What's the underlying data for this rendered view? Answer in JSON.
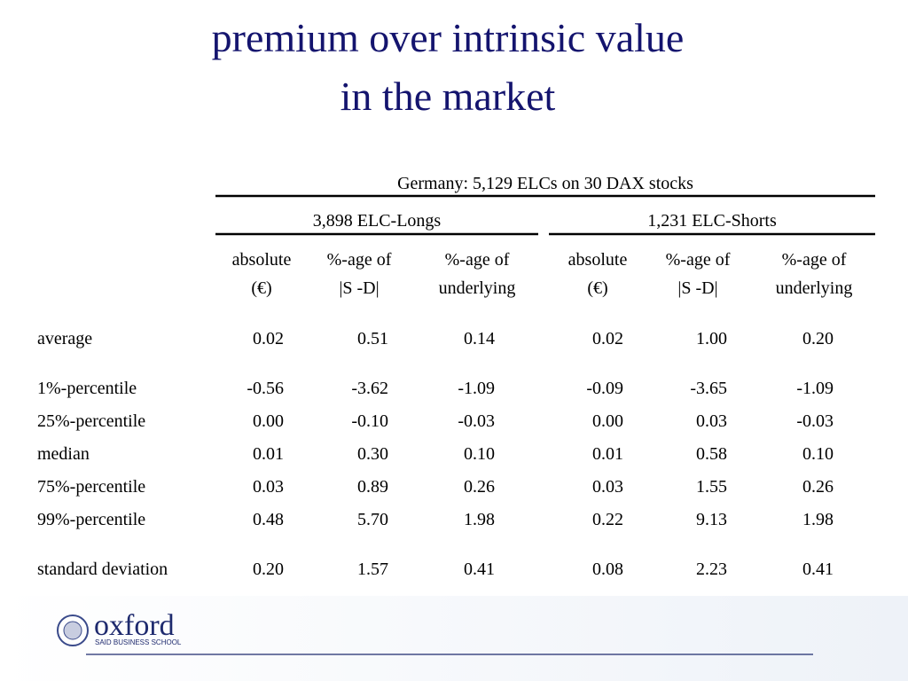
{
  "title": {
    "line1": "premium over intrinsic value",
    "line2": "in the market"
  },
  "table": {
    "group_header": "Germany: 5,129 ELCs on 30 DAX stocks",
    "subgroups": [
      "3,898 ELC-Longs",
      "1,231 ELC-Shorts"
    ],
    "columns": [
      [
        "absolute",
        "(€)"
      ],
      [
        "%-age of",
        "|S -D|"
      ],
      [
        "%-age of",
        "underlying"
      ],
      [
        "absolute",
        "(€)"
      ],
      [
        "%-age of",
        "|S -D|"
      ],
      [
        "%-age of",
        "underlying"
      ]
    ],
    "rows": [
      [
        "average",
        "0.02",
        "0.51",
        "0.14",
        "0.02",
        "1.00",
        "0.20"
      ],
      [
        "1%-percentile",
        "-0.56",
        "-3.62",
        "-1.09",
        "-0.09",
        "-3.65",
        "-1.09"
      ],
      [
        "25%-percentile",
        "0.00",
        "-0.10",
        "-0.03",
        "0.00",
        "0.03",
        "-0.03"
      ],
      [
        "median",
        "0.01",
        "0.30",
        "0.10",
        "0.01",
        "0.58",
        "0.10"
      ],
      [
        "75%-percentile",
        "0.03",
        "0.89",
        "0.26",
        "0.03",
        "1.55",
        "0.26"
      ],
      [
        "99%-percentile",
        "0.48",
        "5.70",
        "1.98",
        "0.22",
        "9.13",
        "1.98"
      ],
      [
        "standard deviation",
        "0.20",
        "1.57",
        "0.41",
        "0.08",
        "2.23",
        "0.41"
      ]
    ]
  },
  "footer": {
    "logo": "oxford",
    "logo_sub": "SAID BUSINESS SCHOOL"
  }
}
